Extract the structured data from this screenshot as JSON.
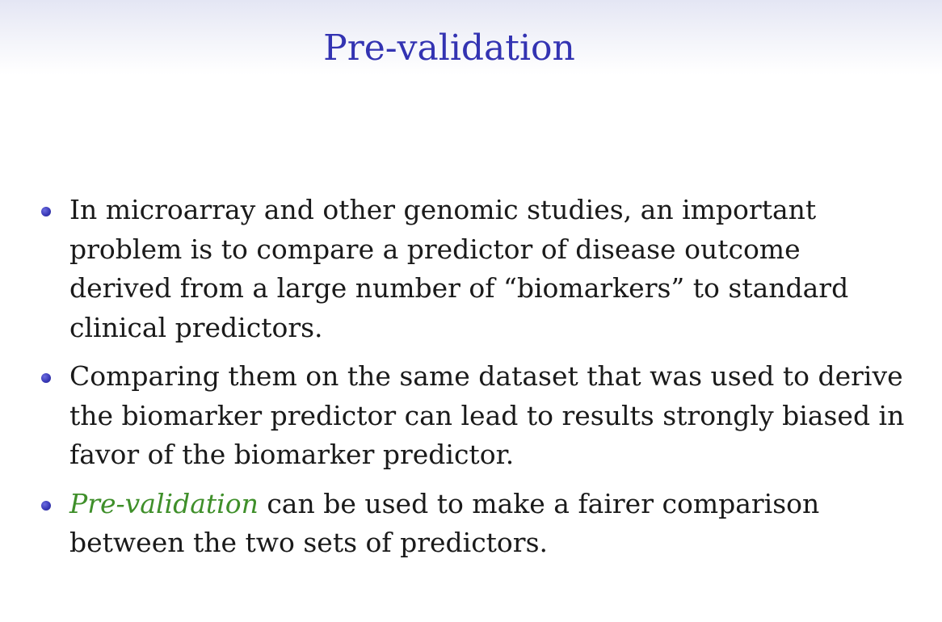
{
  "slide": {
    "title": "Pre-validation",
    "bullets": [
      {
        "text": "In microarray and other genomic studies, an important problem is to compare a predictor of disease outcome derived from a large number of “biomarkers” to standard clinical predictors."
      },
      {
        "text": "Comparing them on the same dataset that was used to derive the biomarker predictor can lead to results strongly biased in favor of the biomarker predictor."
      },
      {
        "emphasis": "Pre-validation",
        "text": " can be used to make a fairer comparison between the two sets of predictors."
      }
    ]
  },
  "colors": {
    "title": "#3333b2",
    "bullet": "#3a3ab8",
    "emphasis": "#3f8f2a",
    "body_text": "#1a1a1a"
  }
}
